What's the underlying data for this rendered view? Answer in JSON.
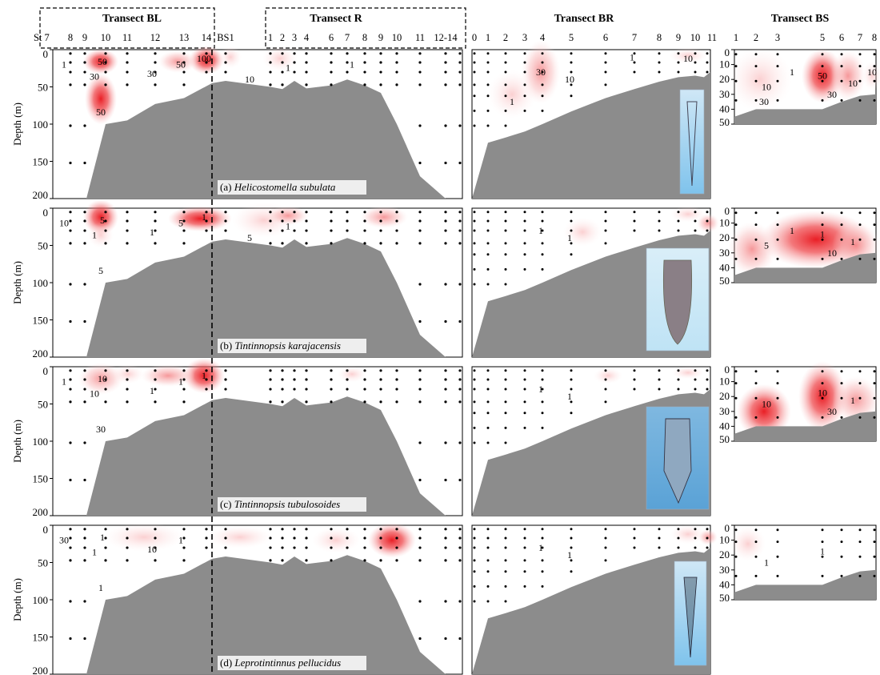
{
  "chart_data": {
    "type": "heatmap",
    "ylabel": "Depth (m)",
    "transects": [
      {
        "id": "BL",
        "title": "Transect BL",
        "boxed": true
      },
      {
        "id": "R",
        "title": "Transect R",
        "boxed": true
      },
      {
        "id": "BR",
        "title": "Transect BR",
        "boxed": false
      },
      {
        "id": "BS",
        "title": "Transect BS",
        "boxed": false
      }
    ],
    "main_section": {
      "station_labels": [
        "St 7",
        "8",
        "9",
        "10",
        "11",
        "12",
        "13",
        "14",
        "BS1",
        "1",
        "2",
        "3",
        "4",
        "6",
        "7",
        "8",
        "9",
        "10",
        "11",
        "12-14"
      ],
      "yticks": [
        0,
        50,
        100,
        150,
        200
      ],
      "ylim": [
        0,
        200
      ]
    },
    "br_section": {
      "station_labels": [
        "0",
        "1",
        "2",
        "3",
        "4",
        "5",
        "6",
        "7",
        "8",
        "9",
        "10",
        "11"
      ],
      "bottom_depth": [
        200,
        125,
        118,
        110,
        100,
        83,
        65,
        53,
        43,
        37,
        35,
        37,
        30
      ],
      "ylim": [
        0,
        200
      ]
    },
    "bs_section": {
      "station_labels": [
        "1",
        "2",
        "3",
        "5",
        "6",
        "7",
        "8"
      ],
      "yticks": [
        0,
        10,
        20,
        30,
        40,
        50
      ],
      "ylim": [
        0,
        50
      ],
      "bottom_depth": [
        45,
        40,
        40,
        40,
        40,
        35,
        31,
        30
      ]
    },
    "main_bottom_profile": [
      200,
      200,
      100,
      95,
      73,
      65,
      45,
      42,
      50,
      53,
      42,
      52,
      48,
      40,
      48,
      58,
      100,
      170,
      200
    ],
    "panels": [
      {
        "label": "(a)",
        "species": "Helicostomella subulata",
        "contour_labels_main": [
          "50",
          "30",
          "50",
          "1",
          "30",
          "50",
          "100",
          "10",
          "1",
          "1"
        ],
        "contour_labels_br": [
          "30",
          "10",
          "1",
          "1",
          "10"
        ],
        "contour_labels_bs": [
          "50",
          "10",
          "30",
          "10",
          "1",
          "10",
          "30"
        ],
        "bs_bottom_shown": true
      },
      {
        "label": "(b)",
        "species": "Tintinnopsis karajacensis",
        "contour_labels_main": [
          "5",
          "1",
          "5",
          "10",
          "1",
          "5",
          "1",
          "5",
          "1"
        ],
        "contour_labels_br": [
          "1",
          "1"
        ],
        "contour_labels_bs": [
          "1",
          "5",
          "10",
          "1",
          "1"
        ],
        "bs_bottom_shown": true
      },
      {
        "label": "(c)",
        "species": "Tintinnopsis tubulosoides",
        "contour_labels_main": [
          "10",
          "10",
          "30",
          "1",
          "1",
          "1",
          "1"
        ],
        "contour_labels_br": [
          "1",
          "1"
        ],
        "contour_labels_bs": [
          "10",
          "10",
          "30",
          "1"
        ],
        "bs_bottom_shown": true
      },
      {
        "label": "(d)",
        "species": "Leprotintinnus pellucidus",
        "contour_labels_main": [
          "1",
          "1",
          "1",
          "30",
          "10",
          "1"
        ],
        "contour_labels_br": [
          "1",
          "1"
        ],
        "contour_labels_bs": [
          "1",
          "1"
        ],
        "bs_bottom_shown": true
      }
    ],
    "colors": {
      "high": "#e8131a",
      "terrain": "#8c8c8c",
      "contour": "#000000"
    }
  }
}
